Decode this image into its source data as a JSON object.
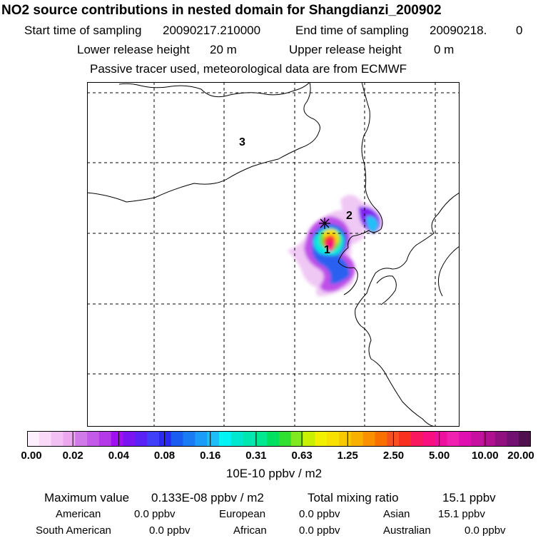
{
  "header": {
    "title": "NO2 source contributions in nested domain for Shangdianzi_200902",
    "start_label": "Start time of sampling",
    "start_value": "20090217.210000",
    "end_label": "End time of sampling",
    "end_value": "20090218.",
    "end_suffix": "0",
    "lower_label": "Lower release height",
    "lower_value": "20 m",
    "upper_label": "Upper release height",
    "upper_value": "0 m",
    "note": "Passive tracer used, meteorological data are from ECMWF"
  },
  "map": {
    "region_labels": [
      "1",
      "2",
      "3"
    ],
    "site_marker": "receptor-star",
    "coast_color": "#000000",
    "grid_color": "#000000"
  },
  "colorbar": {
    "ticks": [
      "0.00",
      "0.02",
      "0.04",
      "0.08",
      "0.16",
      "0.31",
      "0.63",
      "1.25",
      "2.50",
      "5.00",
      "10.00",
      "20.00"
    ],
    "units": "10E-10 ppbv / m2",
    "colors": [
      "#fdf0fd",
      "#f8d9f8",
      "#f2c0f2",
      "#eba8ef",
      "#d07ae8",
      "#c45ae8",
      "#b43ae8",
      "#a010f0",
      "#7a14f0",
      "#5a22f4",
      "#4040f8",
      "#2a2af0",
      "#1a5cf0",
      "#1a7cf4",
      "#1a9cf8",
      "#20bcf8",
      "#00f4f4",
      "#00e8d0",
      "#00e8b0",
      "#00e890",
      "#00e060",
      "#30e030",
      "#80e820",
      "#c8f000",
      "#f0f000",
      "#f8e000",
      "#f8c800",
      "#f8b000",
      "#f89000",
      "#f87000",
      "#f85020",
      "#f83020",
      "#f81860",
      "#f81080",
      "#f010a0",
      "#f020b0",
      "#e010b0",
      "#c810a0",
      "#b01090",
      "#901080",
      "#701070",
      "#501050"
    ]
  },
  "stats": {
    "max_label": "Maximum value",
    "max_value": "0.133E-08 ppbv / m2",
    "total_label": "Total mixing ratio",
    "total_value": "15.1 ppbv",
    "regions": [
      {
        "name": "American",
        "value": "0.0 ppbv"
      },
      {
        "name": "European",
        "value": "0.0 ppbv"
      },
      {
        "name": "Asian",
        "value": "15.1 ppbv"
      },
      {
        "name": "South American",
        "value": "0.0 ppbv"
      },
      {
        "name": "African",
        "value": "0.0 ppbv"
      },
      {
        "name": "Australian",
        "value": "0.0 ppbv"
      }
    ]
  }
}
